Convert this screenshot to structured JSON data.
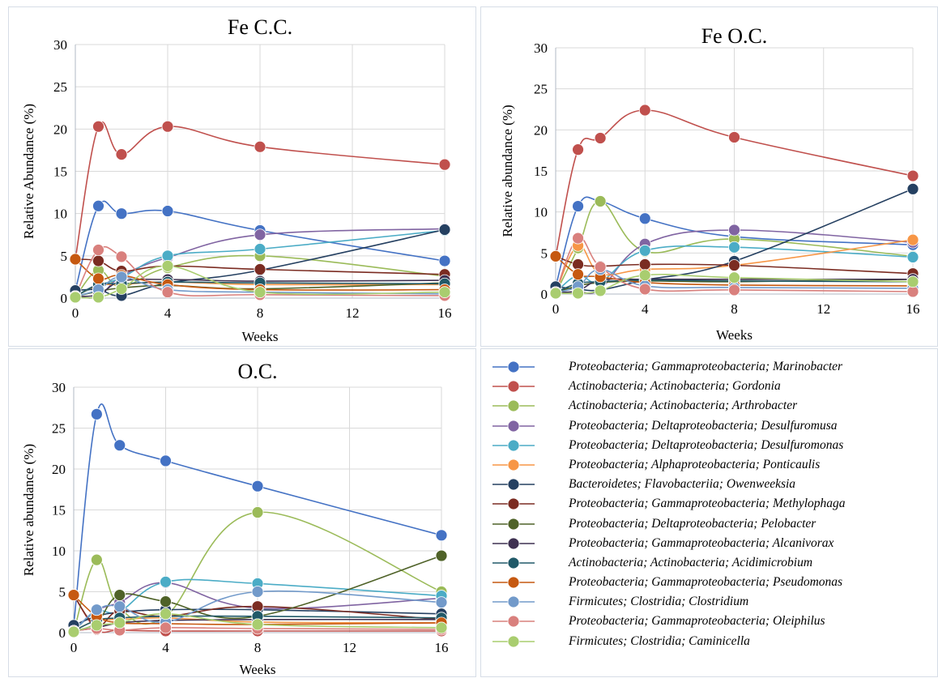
{
  "legend": [
    {
      "name": "Proteobacteria; Gammaproteobacteria; Marinobacter",
      "color": "#4472c4"
    },
    {
      "name": "Actinobacteria; Actinobacteria; Gordonia",
      "color": "#c0504d"
    },
    {
      "name": "Actinobacteria; Actinobacteria; Arthrobacter",
      "color": "#9bbb59"
    },
    {
      "name": "Proteobacteria; Deltaproteobacteria; Desulfuromusa",
      "color": "#8064a2"
    },
    {
      "name": "Proteobacteria; Deltaproteobacteria; Desulfuromonas",
      "color": "#4bacc6"
    },
    {
      "name": "Proteobacteria; Alphaproteobacteria; Ponticaulis",
      "color": "#f79646"
    },
    {
      "name": "Bacteroidetes; Flavobacteriia; Owenweeksia",
      "color": "#254061"
    },
    {
      "name": "Proteobacteria; Gammaproteobacteria; Methylophaga",
      "color": "#7b2c22"
    },
    {
      "name": "Proteobacteria; Deltaproteobacteria; Pelobacter",
      "color": "#4f6228"
    },
    {
      "name": "Proteobacteria; Gammaproteobacteria; Alcanivorax",
      "color": "#3f3151"
    },
    {
      "name": "Actinobacteria; Actinobacteria; Acidimicrobium",
      "color": "#215968"
    },
    {
      "name": "Proteobacteria; Gammaproteobacteria; Pseudomonas",
      "color": "#c65911"
    },
    {
      "name": "Firmicutes; Clostridia; Clostridium",
      "color": "#729aca"
    },
    {
      "name": "Proteobacteria; Gammaproteobacteria; Oleiphilus",
      "color": "#d9807d"
    },
    {
      "name": "Firmicutes; Clostridia; Caminicella",
      "color": "#a9cd6f"
    }
  ],
  "chart_data": [
    {
      "type": "line",
      "title": "Fe C.C.",
      "xlabel": "Weeks",
      "ylabel": "Relative Abundance (%)",
      "x": [
        0,
        1,
        2,
        4,
        8,
        16
      ],
      "xticks": [
        0,
        4,
        8,
        12,
        16
      ],
      "xlim": [
        0,
        16
      ],
      "yticks": [
        0,
        5,
        10,
        15,
        20,
        25,
        30
      ],
      "ylim": [
        0,
        30
      ],
      "grid": true,
      "series": [
        {
          "values": [
            0.9,
            10.9,
            10.0,
            10.3,
            8.0,
            4.4
          ]
        },
        {
          "values": [
            4.6,
            20.3,
            17.0,
            20.3,
            17.9,
            15.8
          ]
        },
        {
          "values": [
            0.1,
            3.3,
            1.3,
            3.6,
            5.0,
            2.6
          ]
        },
        {
          "values": [
            0.2,
            0.2,
            2.6,
            4.8,
            7.5,
            8.2
          ]
        },
        {
          "values": [
            0.2,
            1.5,
            2.4,
            5.0,
            5.8,
            8.0
          ]
        },
        {
          "values": [
            0.2,
            1.5,
            1.6,
            1.9,
            1.6,
            1.6
          ]
        },
        {
          "values": [
            0.9,
            1.0,
            0.3,
            1.8,
            3.3,
            8.1
          ]
        },
        {
          "values": [
            4.6,
            4.4,
            3.2,
            3.8,
            3.4,
            2.8
          ]
        },
        {
          "values": [
            0.2,
            0.8,
            1.2,
            1.5,
            1.1,
            1.8
          ]
        },
        {
          "values": [
            0.2,
            0.4,
            2.0,
            2.2,
            2.0,
            2.1
          ]
        },
        {
          "values": [
            0.2,
            1.6,
            1.7,
            1.9,
            1.8,
            1.7
          ]
        },
        {
          "values": [
            4.6,
            2.3,
            2.7,
            1.6,
            1.0,
            1.0
          ]
        },
        {
          "values": [
            0.2,
            1.0,
            2.5,
            1.0,
            0.7,
            0.5
          ]
        },
        {
          "values": [
            0.2,
            5.7,
            4.9,
            0.7,
            0.4,
            0.3
          ]
        },
        {
          "values": [
            0.1,
            0.1,
            1.1,
            3.8,
            0.7,
            0.7
          ]
        }
      ]
    },
    {
      "type": "line",
      "title": "Fe O.C.",
      "xlabel": "Weeks",
      "ylabel": "Relative abundance (%)",
      "x": [
        0,
        1,
        2,
        4,
        8,
        16
      ],
      "xticks": [
        0,
        4,
        8,
        12,
        16
      ],
      "xlim": [
        0,
        16
      ],
      "yticks": [
        0,
        5,
        10,
        15,
        20,
        25,
        30
      ],
      "ylim": [
        0,
        30
      ],
      "grid": true,
      "series": [
        {
          "values": [
            0.9,
            10.7,
            11.3,
            9.2,
            7.0,
            6.0
          ]
        },
        {
          "values": [
            4.6,
            17.6,
            19.0,
            22.4,
            19.1,
            14.4
          ]
        },
        {
          "values": [
            0.1,
            5.6,
            11.3,
            5.2,
            6.7,
            4.6
          ]
        },
        {
          "values": [
            0.2,
            0.3,
            0.6,
            6.1,
            7.8,
            6.3
          ]
        },
        {
          "values": [
            0.2,
            2.3,
            1.5,
            5.3,
            5.7,
            4.5
          ]
        },
        {
          "values": [
            0.2,
            5.9,
            2.5,
            3.0,
            3.5,
            6.6
          ]
        },
        {
          "values": [
            0.9,
            0.6,
            0.5,
            1.7,
            4.0,
            12.8
          ]
        },
        {
          "values": [
            4.6,
            3.6,
            3.4,
            3.6,
            3.5,
            2.5
          ]
        },
        {
          "values": [
            0.2,
            1.0,
            1.4,
            1.6,
            1.5,
            1.8
          ]
        },
        {
          "values": [
            0.2,
            0.4,
            1.7,
            1.8,
            1.8,
            1.8
          ]
        },
        {
          "values": [
            0.2,
            1.3,
            1.5,
            1.7,
            1.6,
            1.5
          ]
        },
        {
          "values": [
            4.6,
            2.4,
            2.1,
            1.4,
            1.1,
            1.0
          ]
        },
        {
          "values": [
            0.2,
            0.9,
            3.0,
            1.0,
            0.8,
            0.7
          ]
        },
        {
          "values": [
            0.2,
            6.8,
            3.3,
            0.6,
            0.5,
            0.3
          ]
        },
        {
          "values": [
            0.1,
            0.1,
            0.4,
            2.3,
            2.0,
            1.5
          ]
        }
      ]
    },
    {
      "type": "line",
      "title": "O.C.",
      "xlabel": "Weeks",
      "ylabel": "Relative abundance (%)",
      "x": [
        0,
        1,
        2,
        4,
        8,
        16
      ],
      "xticks": [
        0,
        4,
        8,
        12,
        16
      ],
      "xlim": [
        0,
        16
      ],
      "yticks": [
        0,
        5,
        10,
        15,
        20,
        25,
        30
      ],
      "ylim": [
        0,
        30
      ],
      "grid": true,
      "series": [
        {
          "values": [
            0.9,
            26.7,
            22.9,
            21.0,
            17.9,
            11.9
          ]
        },
        {
          "values": [
            4.6,
            0.4,
            0.3,
            0.2,
            0.2,
            0.2
          ]
        },
        {
          "values": [
            0.1,
            8.9,
            3.0,
            2.0,
            14.7,
            5.0
          ]
        },
        {
          "values": [
            0.2,
            2.7,
            3.7,
            6.1,
            3.0,
            4.2
          ]
        },
        {
          "values": [
            0.2,
            2.6,
            2.6,
            6.2,
            6.0,
            4.5
          ]
        },
        {
          "values": [
            0.2,
            1.5,
            1.6,
            1.8,
            1.3,
            1.2
          ]
        },
        {
          "values": [
            0.9,
            2.0,
            2.5,
            2.8,
            2.8,
            2.3
          ]
        },
        {
          "values": [
            4.6,
            0.8,
            2.7,
            2.0,
            3.2,
            1.6
          ]
        },
        {
          "values": [
            0.2,
            1.2,
            4.6,
            3.8,
            2.0,
            9.4
          ]
        },
        {
          "values": [
            0.2,
            0.6,
            1.2,
            1.5,
            1.6,
            1.6
          ]
        },
        {
          "values": [
            0.2,
            1.5,
            1.8,
            2.0,
            2.0,
            1.8
          ]
        },
        {
          "values": [
            4.6,
            2.0,
            1.2,
            1.1,
            1.0,
            1.2
          ]
        },
        {
          "values": [
            0.2,
            2.8,
            3.2,
            1.3,
            5.0,
            3.7
          ]
        },
        {
          "values": [
            0.2,
            0.5,
            0.3,
            0.6,
            0.5,
            0.4
          ]
        },
        {
          "values": [
            0.1,
            0.9,
            1.2,
            2.3,
            1.0,
            0.6
          ]
        }
      ]
    }
  ]
}
